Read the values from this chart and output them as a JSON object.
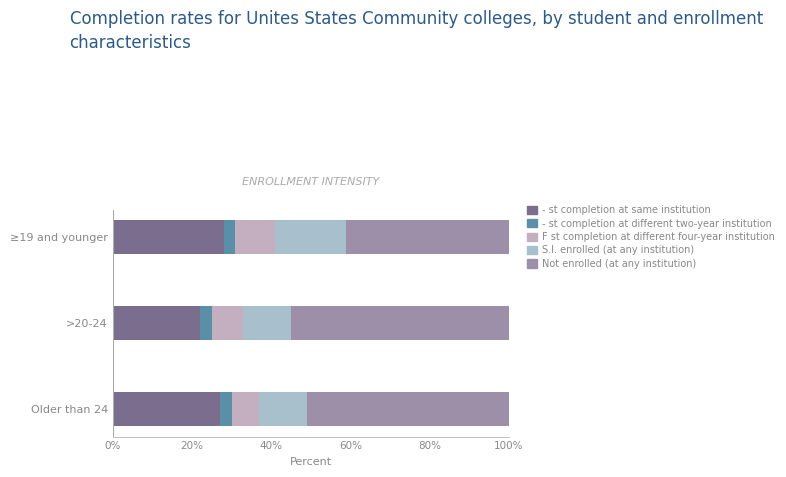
{
  "title": "Completion rates for Unites States Community colleges, by student and enrollment\ncharacteristics",
  "subtitle": "ENROLLMENT INTENSITY",
  "categories": [
    "≥19 and younger",
    ">20-24",
    "Older than 24"
  ],
  "legend_labels": [
    "- st completion at same institution",
    "- st completion at different two-year institution",
    "F st completion at different four-year institution",
    "S.I. enrolled (at any institution)",
    "Not enrolled (at any institution)"
  ],
  "colors": [
    "#7b6d8d",
    "#5b8fa8",
    "#c4afc0",
    "#a8bfcc",
    "#9e8fa8"
  ],
  "segments": [
    [
      28,
      3,
      10,
      18,
      41
    ],
    [
      22,
      3,
      8,
      12,
      55
    ],
    [
      27,
      3,
      7,
      12,
      51
    ]
  ],
  "xlabel": "Percent",
  "xlim": [
    0,
    100
  ],
  "xticks": [
    0,
    20,
    40,
    60,
    80,
    100
  ],
  "xticklabels": [
    "0%",
    "20%",
    "40%",
    "60%",
    "80%",
    "100%"
  ],
  "background_color": "#ffffff",
  "title_color": "#2e5a87",
  "subtitle_color": "#aaaaaa",
  "axis_color": "#aaaaaa",
  "tick_color": "#888888",
  "legend_font_size": 7,
  "title_font_size": 12,
  "subtitle_font_size": 8,
  "xlabel_font_size": 8
}
